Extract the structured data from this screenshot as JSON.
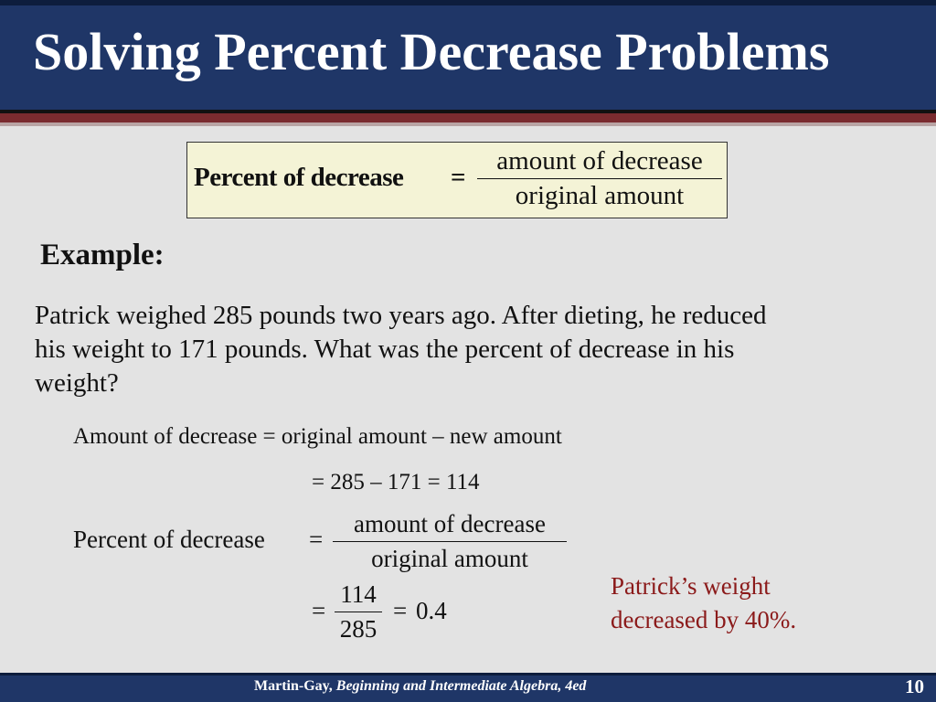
{
  "slide": {
    "title": "Solving Percent Decrease Problems",
    "formula": {
      "label": "Percent of decrease",
      "equals": "=",
      "numerator": "amount of decrease",
      "denominator": "original amount"
    },
    "example_heading": "Example:",
    "problem_lines": [
      "Patrick weighed 285 pounds two years ago.  After dieting, he reduced",
      "his weight to 171 pounds.  What was the percent of decrease in his",
      "weight?"
    ],
    "solution": {
      "line1": "Amount of decrease = original amount – new amount",
      "line2": "= 285 – 171 = 114",
      "percent_label": "Percent of decrease",
      "equals": "=",
      "numerator": "amount of decrease",
      "denominator": "original amount",
      "calc_num": "114",
      "calc_den": "285",
      "calc_result": "0.4"
    },
    "answer_lines": [
      "Patrick’s weight",
      "decreased by 40%."
    ],
    "answer_color": "#8b1a1a",
    "footer": {
      "author": "Martin-Gay,",
      "book": "Beginning and Intermediate Algebra, 4ed",
      "page_number": "10"
    }
  }
}
